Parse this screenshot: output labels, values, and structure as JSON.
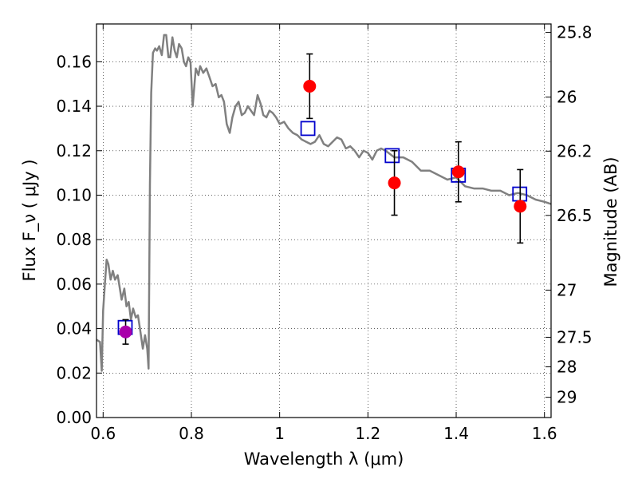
{
  "chart_data": {
    "type": "scatter",
    "xlabel": "Wavelength  λ (μm)",
    "ylabel": "Flux  F_ν  ( μJy )",
    "ylabel_right": "Magnitude (AB)",
    "xlim": [
      0.585,
      1.615
    ],
    "ylim": [
      0.0,
      0.177
    ],
    "grid": true,
    "x_ticks": [
      0.6,
      0.8,
      1.0,
      1.2,
      1.4,
      1.6
    ],
    "x_tick_labels": [
      "0.6",
      "0.8",
      "1",
      "1.2",
      "1.4",
      "1.6"
    ],
    "y_ticks": [
      0.0,
      0.02,
      0.04,
      0.06,
      0.08,
      0.1,
      0.12,
      0.14,
      0.16
    ],
    "y_tick_labels": [
      "0.00",
      "0.02",
      "0.04",
      "0.06",
      "0.08",
      "0.10",
      "0.12",
      "0.14",
      "0.16"
    ],
    "right_ticks": [
      {
        "label": "25.8",
        "flux": 0.1732
      },
      {
        "label": "26",
        "flux": 0.1441
      },
      {
        "label": "26.2",
        "flux": 0.1198
      },
      {
        "label": "26.5",
        "flux": 0.0909
      },
      {
        "label": "27",
        "flux": 0.0573
      },
      {
        "label": "27.5",
        "flux": 0.0361
      },
      {
        "label": "28",
        "flux": 0.0228
      },
      {
        "label": "29",
        "flux": 0.0091
      }
    ],
    "series": [
      {
        "kind": "line",
        "color": "#808080",
        "x": [
          0.585,
          0.593,
          0.597,
          0.6,
          0.604,
          0.608,
          0.612,
          0.617,
          0.622,
          0.627,
          0.633,
          0.638,
          0.642,
          0.648,
          0.653,
          0.658,
          0.663,
          0.668,
          0.674,
          0.679,
          0.685,
          0.69,
          0.695,
          0.7,
          0.703,
          0.706,
          0.709,
          0.713,
          0.718,
          0.722,
          0.727,
          0.733,
          0.738,
          0.743,
          0.748,
          0.752,
          0.757,
          0.762,
          0.767,
          0.772,
          0.778,
          0.783,
          0.788,
          0.793,
          0.798,
          0.803,
          0.81,
          0.816,
          0.82,
          0.827,
          0.834,
          0.841,
          0.848,
          0.855,
          0.862,
          0.868,
          0.874,
          0.88,
          0.887,
          0.893,
          0.9,
          0.907,
          0.914,
          0.921,
          0.928,
          0.935,
          0.942,
          0.95,
          0.957,
          0.963,
          0.97,
          0.977,
          0.984,
          0.992,
          1.0,
          1.01,
          1.02,
          1.03,
          1.04,
          1.05,
          1.06,
          1.07,
          1.08,
          1.09,
          1.1,
          1.11,
          1.12,
          1.13,
          1.14,
          1.15,
          1.16,
          1.17,
          1.18,
          1.19,
          1.2,
          1.21,
          1.22,
          1.23,
          1.24,
          1.26,
          1.28,
          1.29,
          1.3,
          1.32,
          1.34,
          1.36,
          1.38,
          1.4,
          1.42,
          1.44,
          1.46,
          1.48,
          1.5,
          1.52,
          1.54,
          1.56,
          1.58,
          1.6,
          1.615
        ],
        "y": [
          0.035,
          0.034,
          0.021,
          0.048,
          0.06,
          0.071,
          0.069,
          0.062,
          0.066,
          0.062,
          0.064,
          0.058,
          0.053,
          0.058,
          0.05,
          0.052,
          0.044,
          0.049,
          0.045,
          0.046,
          0.038,
          0.031,
          0.037,
          0.031,
          0.022,
          0.105,
          0.146,
          0.164,
          0.166,
          0.165,
          0.167,
          0.163,
          0.172,
          0.172,
          0.162,
          0.162,
          0.171,
          0.165,
          0.162,
          0.168,
          0.166,
          0.16,
          0.158,
          0.162,
          0.16,
          0.14,
          0.157,
          0.154,
          0.158,
          0.155,
          0.157,
          0.153,
          0.149,
          0.15,
          0.144,
          0.145,
          0.142,
          0.132,
          0.128,
          0.135,
          0.14,
          0.142,
          0.136,
          0.137,
          0.14,
          0.138,
          0.136,
          0.145,
          0.141,
          0.136,
          0.135,
          0.138,
          0.137,
          0.135,
          0.132,
          0.133,
          0.13,
          0.128,
          0.127,
          0.125,
          0.124,
          0.123,
          0.124,
          0.127,
          0.123,
          0.122,
          0.124,
          0.126,
          0.125,
          0.121,
          0.122,
          0.12,
          0.117,
          0.12,
          0.119,
          0.116,
          0.12,
          0.121,
          0.12,
          0.117,
          0.117,
          0.116,
          0.115,
          0.111,
          0.111,
          0.109,
          0.107,
          0.108,
          0.104,
          0.103,
          0.103,
          0.102,
          0.102,
          0.1,
          0.101,
          0.1,
          0.098,
          0.097,
          0.096
        ]
      },
      {
        "kind": "open-square",
        "color": "#0000cc",
        "x": [
          0.65,
          1.064,
          1.255,
          1.405,
          1.544
        ],
        "y": [
          0.0405,
          0.13,
          0.1178,
          0.109,
          0.1005
        ]
      },
      {
        "kind": "points-errorbars",
        "color": "#ff0000",
        "x": [
          1.068,
          1.26,
          1.405,
          1.545
        ],
        "y": [
          0.149,
          0.1055,
          0.1105,
          0.095
        ],
        "yerr": [
          0.0145,
          0.0145,
          0.0135,
          0.0165
        ]
      },
      {
        "kind": "points-errorbars",
        "color": "#aa00aa",
        "x": [
          0.651
        ],
        "y": [
          0.0385
        ],
        "yerr": [
          0.0055
        ]
      }
    ]
  }
}
